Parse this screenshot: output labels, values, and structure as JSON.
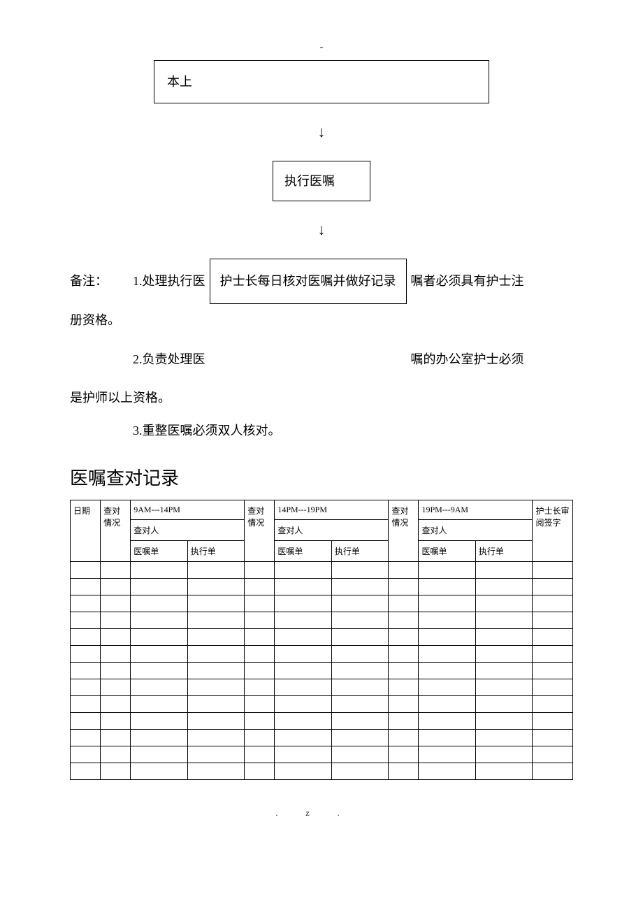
{
  "top_dash": "-",
  "box_top_text": "本上",
  "arrow": "↓",
  "box_mid_text": "执行医嘱",
  "flow": {
    "label": "备注：",
    "line1_left": "1.处理执行医",
    "mid_box": "护士长每日核对医嘱并做好记录",
    "line1_right": "嘱者必须具有护士注",
    "line1_wrap": "册资格。",
    "line2_left": "2.负责处理医",
    "line2_right": "嘱的办公室护士必须",
    "line2_wrap": "是护师以上资格。",
    "line3": "3.重整医嘱必须双人核对。"
  },
  "section_title": "医嘱查对记录",
  "table": {
    "headers": {
      "date": "日期",
      "status": "查对情况",
      "shift1": "9AM---14PM",
      "shift2": "14PM---19PM",
      "shift3": "19PM---9AM",
      "checker": "查对人",
      "order_sheet": "医嘱单",
      "exec_sheet": "执行单",
      "sign": "护士长审阅签字"
    },
    "empty_rows": 13
  },
  "footer_left": ".",
  "footer_right": "z.",
  "colors": {
    "border": "#000000",
    "background": "#ffffff",
    "text": "#000000"
  }
}
